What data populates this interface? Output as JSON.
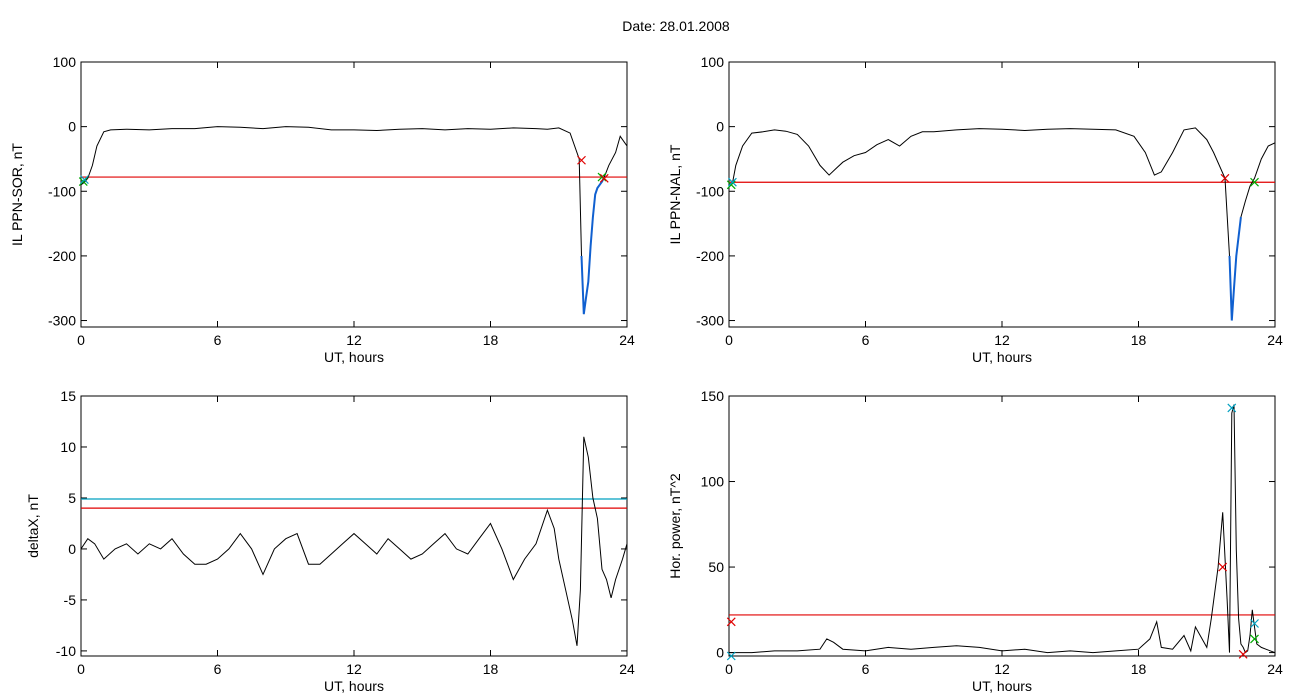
{
  "header": {
    "date_label": "Date:  28.01.2008"
  },
  "chart_data": [
    {
      "id": "sor",
      "type": "line",
      "xlabel": "UT, hours",
      "ylabel": "IL PPN-SOR, nT",
      "xlim": [
        0,
        24
      ],
      "ylim": [
        -310,
        100
      ],
      "xticks": [
        0,
        6,
        12,
        18,
        24
      ],
      "yticks": [
        100,
        0,
        -100,
        -200,
        -300
      ],
      "threshold_lines": [
        {
          "color": "#e00000",
          "y": -78
        }
      ],
      "series": [
        {
          "color": "#000000",
          "x": [
            0,
            0.15,
            0.3,
            0.5,
            0.7,
            1,
            1.3,
            2,
            3,
            4,
            5,
            6,
            7,
            8,
            9,
            10,
            11,
            12,
            13,
            14,
            15,
            16,
            17,
            18,
            19,
            20,
            20.5,
            21,
            21.5,
            21.9,
            22.0,
            22.1,
            22.2,
            22.3,
            22.4,
            22.5,
            22.6,
            22.7,
            22.8,
            22.9,
            23.0,
            23.2,
            23.5,
            23.7,
            24
          ],
          "y": [
            -90,
            -86,
            -80,
            -60,
            -30,
            -8,
            -5,
            -4,
            -5,
            -3,
            -3,
            0,
            -1,
            -3,
            0,
            -1,
            -5,
            -5,
            -6,
            -4,
            -3,
            -5,
            -3,
            -4,
            -2,
            -3,
            -4,
            -2,
            -10,
            -50,
            -200,
            -290,
            -265,
            -240,
            -185,
            -140,
            -105,
            -95,
            -90,
            -85,
            -78,
            -60,
            -40,
            -15,
            -30
          ]
        }
      ],
      "markers": [
        {
          "x": 0.1,
          "y": -85,
          "color": "#00aa00"
        },
        {
          "x": 0.15,
          "y": -82,
          "color": "#00a0c0"
        },
        {
          "x": 22.0,
          "y": -52,
          "color": "#e00000"
        },
        {
          "x": 22.9,
          "y": -78,
          "color": "#00aa00"
        },
        {
          "x": 23.0,
          "y": -80,
          "color": "#e00000"
        }
      ],
      "highlights": [
        {
          "color": "#1060d0",
          "x0": 22.0,
          "x1": 23.1
        }
      ]
    },
    {
      "id": "nal",
      "type": "line",
      "xlabel": "UT, hours",
      "ylabel": "IL PPN-NAL, nT",
      "xlim": [
        0,
        24
      ],
      "ylim": [
        -310,
        100
      ],
      "xticks": [
        0,
        6,
        12,
        18,
        24
      ],
      "yticks": [
        100,
        0,
        -100,
        -200,
        -300
      ],
      "threshold_lines": [
        {
          "color": "#e00000",
          "y": -86
        }
      ],
      "series": [
        {
          "color": "#000000",
          "x": [
            0,
            0.15,
            0.3,
            0.6,
            1,
            1.5,
            2,
            2.5,
            3,
            3.5,
            4,
            4.4,
            4.7,
            5,
            5.5,
            6,
            6.5,
            7,
            7.5,
            8,
            8.5,
            9,
            10,
            11,
            12,
            13,
            14,
            15,
            16,
            17,
            17.8,
            18.3,
            18.7,
            19,
            19.5,
            20,
            20.5,
            21,
            21.3,
            21.8,
            22.0,
            22.1,
            22.2,
            22.3,
            22.4,
            22.5,
            22.7,
            22.9,
            23.1,
            23.4,
            23.7,
            24
          ],
          "y": [
            -92,
            -88,
            -60,
            -30,
            -10,
            -8,
            -5,
            -7,
            -12,
            -30,
            -60,
            -75,
            -65,
            -55,
            -45,
            -40,
            -28,
            -20,
            -30,
            -15,
            -8,
            -8,
            -5,
            -3,
            -4,
            -6,
            -4,
            -3,
            -4,
            -5,
            -15,
            -40,
            -75,
            -70,
            -40,
            -5,
            -2,
            -20,
            -40,
            -80,
            -200,
            -300,
            -250,
            -200,
            -170,
            -140,
            -115,
            -92,
            -80,
            -50,
            -30,
            -25
          ]
        }
      ],
      "markers": [
        {
          "x": 0.1,
          "y": -90,
          "color": "#00aa00"
        },
        {
          "x": 0.15,
          "y": -86,
          "color": "#00a0c0"
        },
        {
          "x": 21.8,
          "y": -80,
          "color": "#e00000"
        },
        {
          "x": 23.1,
          "y": -86,
          "color": "#00aa00"
        }
      ],
      "highlights": [
        {
          "color": "#1060d0",
          "x0": 21.9,
          "x1": 22.6
        }
      ]
    },
    {
      "id": "deltax",
      "type": "line",
      "xlabel": "UT, hours",
      "ylabel": "deltaX, nT",
      "xlim": [
        0,
        24
      ],
      "ylim": [
        -10.5,
        15
      ],
      "xticks": [
        0,
        6,
        12,
        18,
        24
      ],
      "yticks": [
        15,
        10,
        5,
        0,
        -5,
        -10
      ],
      "threshold_lines": [
        {
          "color": "#00a0c0",
          "y": 4.9
        },
        {
          "color": "#e00000",
          "y": 4.0
        }
      ],
      "series": [
        {
          "color": "#000000",
          "x": [
            0,
            0.3,
            0.6,
            1,
            1.5,
            2,
            2.5,
            3,
            3.5,
            4,
            4.5,
            5,
            5.5,
            6,
            6.5,
            7,
            7.5,
            8,
            8.5,
            9,
            9.5,
            10,
            10.5,
            11,
            11.5,
            12,
            12.5,
            13,
            13.5,
            14,
            14.5,
            15,
            15.5,
            16,
            16.5,
            17,
            17.5,
            18,
            18.5,
            19,
            19.5,
            20,
            20.5,
            20.8,
            21,
            21.3,
            21.6,
            21.8,
            21.95,
            22.1,
            22.3,
            22.5,
            22.7,
            22.9,
            23.1,
            23.3,
            23.5,
            23.8,
            24
          ],
          "y": [
            0,
            1,
            0.5,
            -1,
            0,
            0.5,
            -0.5,
            0.5,
            0,
            1,
            -0.5,
            -1.5,
            -1.5,
            -1,
            0,
            1.5,
            0,
            -2.5,
            0,
            1,
            1.5,
            -1.5,
            -1.5,
            -0.5,
            0.5,
            1.5,
            0.5,
            -0.5,
            1,
            0,
            -1,
            -0.5,
            0.5,
            1.5,
            0,
            -0.5,
            1,
            2.5,
            0,
            -3,
            -1,
            0.5,
            3.8,
            2,
            -1,
            -4,
            -7,
            -9.5,
            -4,
            11,
            9,
            5,
            3,
            -2,
            -3,
            -4.8,
            -3,
            -1,
            0.5
          ]
        }
      ]
    },
    {
      "id": "power",
      "type": "line",
      "xlabel": "UT, hours",
      "ylabel": "Hor. power, nT^2",
      "xlim": [
        0,
        24
      ],
      "ylim": [
        -2,
        150
      ],
      "xticks": [
        0,
        6,
        12,
        18,
        24
      ],
      "yticks": [
        150,
        100,
        50,
        0
      ],
      "threshold_lines": [
        {
          "color": "#e00000",
          "y": 22
        }
      ],
      "series": [
        {
          "color": "#000000",
          "x": [
            0,
            0.5,
            1,
            2,
            3,
            4,
            4.3,
            4.6,
            5,
            6,
            7,
            8,
            9,
            10,
            11,
            12,
            13,
            14,
            15,
            16,
            17,
            18,
            18.5,
            18.8,
            19,
            19.5,
            20,
            20.3,
            20.5,
            21,
            21.2,
            21.5,
            21.7,
            21.9,
            22.0,
            22.1,
            22.2,
            22.3,
            22.4,
            22.5,
            22.6,
            22.7,
            22.8,
            22.9,
            23.0,
            23.1,
            23.2,
            23.4,
            23.6,
            24
          ],
          "y": [
            0,
            0,
            0,
            1,
            1,
            2,
            8,
            6,
            2,
            1,
            3,
            2,
            3,
            4,
            3,
            1,
            2,
            0,
            1,
            0,
            1,
            2,
            8,
            18,
            3,
            2,
            10,
            1,
            15,
            3,
            20,
            50,
            82,
            30,
            0,
            140,
            145,
            60,
            20,
            5,
            3,
            0,
            1,
            10,
            25,
            15,
            5,
            3,
            2,
            0
          ]
        }
      ],
      "markers": [
        {
          "x": 0.1,
          "y": 18,
          "color": "#e00000"
        },
        {
          "x": 0.1,
          "y": -2,
          "color": "#00a0c0"
        },
        {
          "x": 21.7,
          "y": 50,
          "color": "#e00000"
        },
        {
          "x": 22.1,
          "y": 143,
          "color": "#00a0c0"
        },
        {
          "x": 22.6,
          "y": -1,
          "color": "#e00000"
        },
        {
          "x": 23.1,
          "y": 17,
          "color": "#00a0c0"
        },
        {
          "x": 23.1,
          "y": 8,
          "color": "#00aa00"
        }
      ]
    }
  ]
}
